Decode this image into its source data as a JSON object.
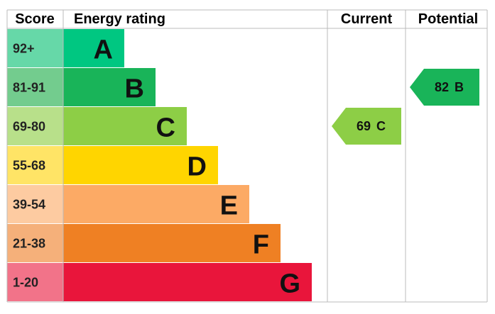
{
  "header": {
    "score": "Score",
    "rating": "Energy rating",
    "current": "Current",
    "potential": "Potential"
  },
  "bands": [
    {
      "score": "92+",
      "letter": "A",
      "color": "#00c781",
      "light": "#66d8a8"
    },
    {
      "score": "81-91",
      "letter": "B",
      "color": "#19b459",
      "light": "#73cc8e"
    },
    {
      "score": "69-80",
      "letter": "C",
      "color": "#8dce46",
      "light": "#b8e08a"
    },
    {
      "score": "55-68",
      "letter": "D",
      "color": "#ffd500",
      "light": "#ffe466"
    },
    {
      "score": "39-54",
      "letter": "E",
      "color": "#fcaa65",
      "light": "#fdcba1"
    },
    {
      "score": "21-38",
      "letter": "F",
      "color": "#ef8023",
      "light": "#f5b07a"
    },
    {
      "score": "1-20",
      "letter": "G",
      "color": "#e9153b",
      "light": "#f27389"
    }
  ],
  "current": {
    "value": 69,
    "letter": "C"
  },
  "potential": {
    "value": 82,
    "letter": "B"
  }
}
